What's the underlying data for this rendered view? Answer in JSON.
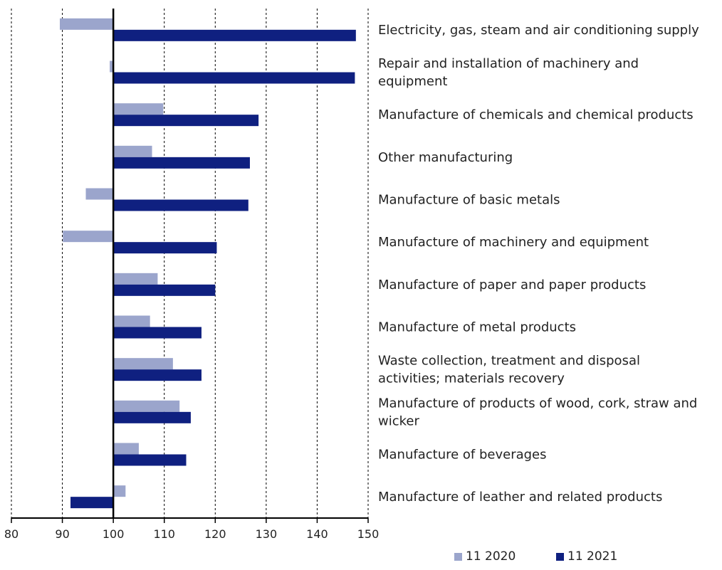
{
  "chart_data": {
    "type": "bar",
    "orientation": "horizontal",
    "categories": [
      [
        "Electricity, gas, steam and air conditioning supply"
      ],
      [
        "Repair and installation of machinery and",
        "equipment"
      ],
      [
        "Manufacture of chemicals and chemical products"
      ],
      [
        "Other manufacturing"
      ],
      [
        "Manufacture of basic metals"
      ],
      [
        "Manufacture of machinery and equipment"
      ],
      [
        "Manufacture of paper and paper products"
      ],
      [
        "Manufacture of metal products"
      ],
      [
        "Waste collection, treatment and disposal",
        "activities; materials recovery"
      ],
      [
        "Manufacture of products of wood, cork, straw and",
        "wicker"
      ],
      [
        "Manufacture of beverages"
      ],
      [
        "Manufacture of leather and related products"
      ]
    ],
    "baseline": 100,
    "series": [
      {
        "name": "11 2020",
        "color": "#9ba5cc",
        "values": [
          89.5,
          99.3,
          109.8,
          107.6,
          94.6,
          90.1,
          108.7,
          107.2,
          111.7,
          113.0,
          105.0,
          102.4
        ]
      },
      {
        "name": "11 2021",
        "color": "#0f2080",
        "values": [
          147.6,
          147.4,
          128.5,
          126.8,
          126.5,
          120.3,
          120.0,
          117.3,
          117.3,
          115.2,
          114.3,
          91.6
        ]
      }
    ],
    "xlim": [
      80,
      150
    ],
    "xticks": [
      80,
      90,
      100,
      110,
      120,
      130,
      140,
      150
    ],
    "grid": true,
    "legend_position": "bottom"
  }
}
